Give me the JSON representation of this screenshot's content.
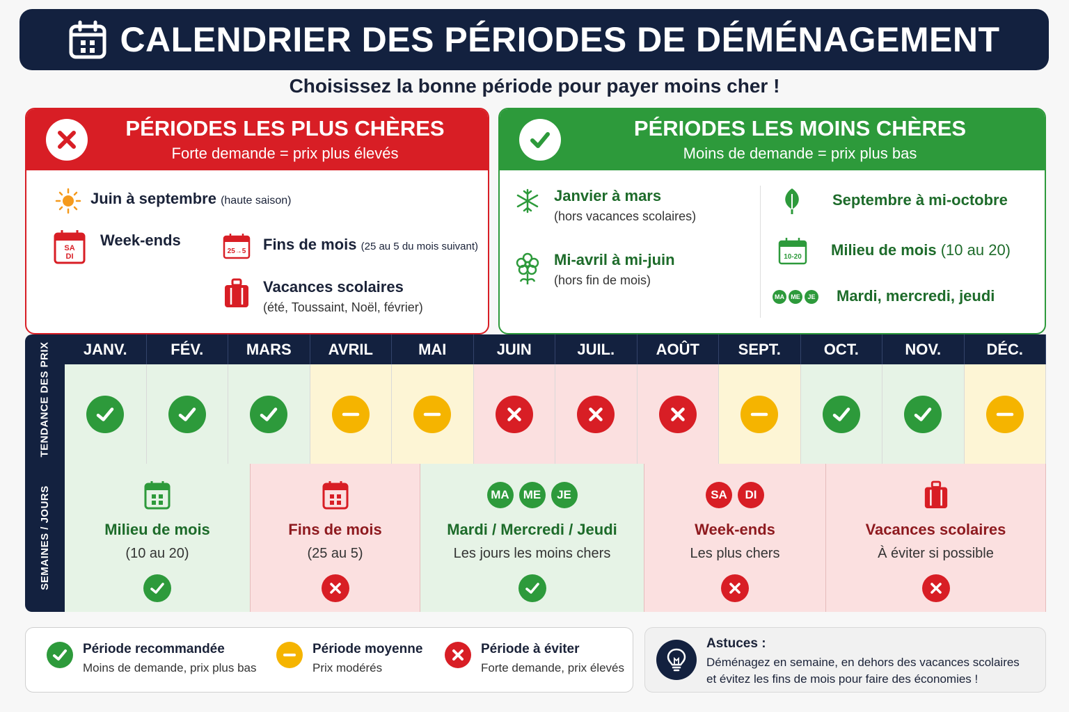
{
  "title": "CALENDRIER DES PÉRIODES DE DÉMÉNAGEMENT",
  "subtitle": "Choisissez la bonne période pour payer moins cher !",
  "expensive": {
    "title": "PÉRIODES LES PLUS CHÈRES",
    "subtitle": "Forte demande = prix plus élevés",
    "items": {
      "summer": {
        "label": "Juin à septembre",
        "note": "(haute saison)"
      },
      "weekends": {
        "label": "Week-ends",
        "icon_text_1": "SA",
        "icon_text_2": "DI"
      },
      "month_end": {
        "label": "Fins de mois",
        "note": "(25 au 5 du mois suivant)",
        "icon_text": "25→5"
      },
      "holidays": {
        "label": "Vacances scolaires",
        "sub": "(été, Toussaint, Noël, février)"
      }
    }
  },
  "cheap": {
    "title": "PÉRIODES LES MOINS CHÈRES",
    "subtitle": "Moins de demande = prix plus bas",
    "items": {
      "winter": {
        "label": "Janvier à mars",
        "sub": "(hors vacances scolaires)"
      },
      "spring": {
        "label": "Mi-avril à mi-juin",
        "sub": "(hors fin de mois)"
      },
      "autumn": {
        "label": "Septembre à mi-octobre"
      },
      "mid_month": {
        "label": "Milieu de mois",
        "note": "(10 au 20)",
        "icon_text": "10-20"
      },
      "weekdays": {
        "label": "Mardi, mercredi, jeudi",
        "pills": [
          "MA",
          "ME",
          "JE"
        ]
      }
    }
  },
  "trend_label": "TENDANCE DES PRIX",
  "weeks_label": "SEMAINES / JOURS",
  "months": [
    {
      "name": "JANV.",
      "status": "good"
    },
    {
      "name": "FÉV.",
      "status": "good"
    },
    {
      "name": "MARS",
      "status": "good"
    },
    {
      "name": "AVRIL",
      "status": "mid"
    },
    {
      "name": "MAI",
      "status": "mid"
    },
    {
      "name": "JUIN",
      "status": "bad"
    },
    {
      "name": "JUIL.",
      "status": "bad"
    },
    {
      "name": "AOÛT",
      "status": "bad"
    },
    {
      "name": "SEPT.",
      "status": "mid"
    },
    {
      "name": "OCT.",
      "status": "good"
    },
    {
      "name": "NOV.",
      "status": "good"
    },
    {
      "name": "DÉC.",
      "status": "mid"
    }
  ],
  "weeks": [
    {
      "title": "Milieu de mois",
      "sub": "(10 au 20)",
      "status": "good",
      "icon": "calendar-icon"
    },
    {
      "title": "Fins de mois",
      "sub": "(25 au 5)",
      "status": "bad",
      "icon": "calendar-icon"
    },
    {
      "title": "Mardi / Mercredi / Jeudi",
      "sub": "Les jours les moins chers",
      "status": "good",
      "pills": [
        "MA",
        "ME",
        "JE"
      ]
    },
    {
      "title": "Week-ends",
      "sub": "Les plus chers",
      "status": "bad",
      "pills": [
        "SA",
        "DI"
      ]
    },
    {
      "title": "Vacances scolaires",
      "sub": "À éviter si possible",
      "status": "bad",
      "icon": "suitcase-icon"
    }
  ],
  "legend": {
    "good": {
      "title": "Période recommandée",
      "sub": "Moins de demande, prix plus bas"
    },
    "mid": {
      "title": "Période moyenne",
      "sub": "Prix modérés"
    },
    "bad": {
      "title": "Période à éviter",
      "sub": "Forte demande, prix élevés"
    }
  },
  "tips": {
    "title": "Astuces :",
    "line1": "Déménagez en semaine, en dehors des vacances scolaires",
    "line2": "et évitez les fins de mois pour faire des économies !"
  },
  "colors": {
    "navy": "#13213f",
    "green": "#2d9a3b",
    "red": "#d81e25",
    "yellow": "#f5b400"
  }
}
